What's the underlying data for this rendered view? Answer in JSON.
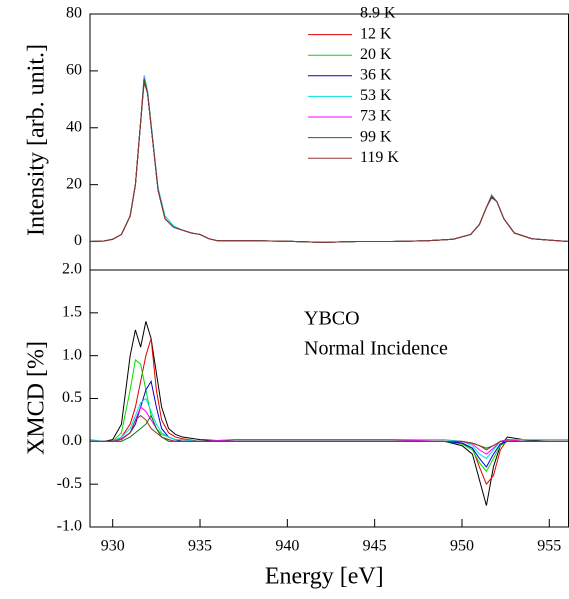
{
  "chart_data": [
    {
      "type": "line",
      "ylabel": "Intensity [arb. unit.]",
      "xlim": [
        928.7,
        956.1
      ],
      "ylim": [
        -10,
        80
      ],
      "yticks": [
        0,
        20,
        40,
        60,
        80
      ],
      "legend": "upper-center",
      "x": [
        928.7,
        929.5,
        930,
        930.5,
        931,
        931.3,
        931.6,
        931.8,
        932,
        932.3,
        932.6,
        933,
        933.5,
        934,
        934.5,
        935,
        935.5,
        936,
        938,
        940,
        942,
        944,
        946,
        948,
        949.5,
        950.5,
        951,
        951.4,
        951.7,
        952,
        952.4,
        953,
        954,
        955,
        956.1
      ],
      "series": [
        {
          "name": "8.9 K",
          "color": "#000000",
          "values": [
            0,
            0.2,
            0.8,
            2.5,
            9,
            20,
            42,
            56.5,
            52,
            35,
            18,
            8,
            5,
            4,
            3,
            2.5,
            1,
            0.3,
            0.3,
            0.1,
            -0.3,
            0,
            0,
            0.3,
            0.8,
            2.5,
            6,
            12,
            15.5,
            14,
            8,
            3,
            1,
            0.5,
            0
          ]
        },
        {
          "name": "12 K",
          "color": "#e00000",
          "values": [
            0,
            0.2,
            0.8,
            2.5,
            9,
            20,
            42,
            57,
            52,
            35,
            18,
            8,
            5,
            4,
            3,
            2.5,
            1,
            0.3,
            0.3,
            0.1,
            -0.3,
            0,
            0,
            0.3,
            0.8,
            2.5,
            6,
            12,
            16,
            14,
            8,
            3,
            1,
            0.5,
            0
          ]
        },
        {
          "name": "20 K",
          "color": "#00dd00",
          "values": [
            0,
            0.2,
            0.8,
            2.5,
            9,
            20,
            42,
            57.5,
            52,
            35,
            18,
            8,
            5,
            4,
            3,
            2.5,
            1,
            0.3,
            0.3,
            0.1,
            -0.3,
            0,
            0,
            0.3,
            0.8,
            2.5,
            6,
            12,
            16,
            14,
            8,
            3,
            1,
            0.5,
            0
          ]
        },
        {
          "name": "36 K",
          "color": "#0000cc",
          "values": [
            0,
            0.2,
            0.8,
            2.5,
            9,
            20,
            42,
            58,
            52,
            35,
            18,
            8,
            5,
            4,
            3,
            2.5,
            1,
            0.3,
            0.3,
            0.1,
            -0.3,
            0,
            0,
            0.3,
            0.8,
            2.5,
            6,
            12,
            16,
            14,
            8,
            3,
            1,
            0.5,
            0
          ]
        },
        {
          "name": "53 K",
          "color": "#00e0e0",
          "values": [
            0,
            0.2,
            0.8,
            2.5,
            9,
            20,
            42,
            58.5,
            53,
            36,
            19,
            9,
            5.5,
            4,
            3,
            2.5,
            1,
            0.3,
            0.3,
            0.1,
            -0.3,
            0,
            0,
            0.3,
            0.8,
            2.5,
            6,
            12,
            16.5,
            14,
            8,
            3,
            1,
            0.5,
            0
          ]
        },
        {
          "name": "73 K",
          "color": "#ff00ff",
          "values": [
            0,
            0.2,
            0.8,
            2.5,
            9,
            20,
            42,
            57.5,
            52,
            35,
            18,
            8,
            5,
            4,
            3,
            2.5,
            1,
            0.3,
            0.3,
            0.1,
            -0.3,
            0,
            0,
            0.3,
            0.8,
            2.5,
            6,
            12,
            16,
            14,
            8,
            3,
            1,
            0.5,
            0
          ]
        },
        {
          "name": "99 K",
          "color": "#008000",
          "values": [
            0,
            0.2,
            0.8,
            2.5,
            9,
            20,
            42,
            57,
            52,
            35,
            18,
            8,
            5,
            4,
            3,
            2.5,
            1,
            0.3,
            0.3,
            0.1,
            -0.3,
            0,
            0,
            0.3,
            0.8,
            2.5,
            6,
            12,
            16,
            14,
            8,
            3,
            1,
            0.5,
            0
          ]
        },
        {
          "name": "119 K",
          "color": "#993333",
          "values": [
            0,
            0.2,
            0.8,
            2.5,
            9,
            20,
            42,
            56,
            52,
            35,
            18,
            8,
            5,
            4,
            3,
            2.5,
            1,
            0.3,
            0.3,
            0.1,
            -0.3,
            0,
            0,
            0.3,
            0.8,
            2.5,
            6,
            12,
            16,
            14,
            8,
            3,
            1,
            0.5,
            0
          ]
        }
      ]
    },
    {
      "type": "line",
      "ylabel": "XMCD [%]",
      "xlabel": "Energy [eV]",
      "annotations": [
        "YBCO",
        "Normal Incidence"
      ],
      "xlim": [
        928.7,
        956.1
      ],
      "xticks": [
        930,
        935,
        940,
        945,
        950,
        955
      ],
      "ylim": [
        -1,
        2
      ],
      "yticks": [
        {
          "value": -1,
          "label": "-1.0"
        },
        -0.5,
        {
          "value": 0,
          "label": "0.0"
        },
        0.5,
        {
          "value": 1,
          "label": "1.0"
        },
        1.5,
        {
          "value": 2,
          "label": "2.0"
        }
      ],
      "x": [
        928.7,
        929.5,
        930,
        930.5,
        931,
        931.3,
        931.6,
        931.9,
        932.2,
        932.5,
        932.8,
        933.2,
        933.6,
        934,
        935,
        937,
        940,
        943,
        946,
        949,
        950,
        950.6,
        951,
        951.4,
        951.8,
        952.2,
        952.6,
        953.5,
        955,
        956.1
      ],
      "series": [
        {
          "color": "#000000",
          "values": [
            0,
            0,
            0.02,
            0.2,
            1,
            1.3,
            1.1,
            1.4,
            1.2,
            0.8,
            0.4,
            0.15,
            0.08,
            0.05,
            0.02,
            0,
            0,
            0,
            0,
            0,
            -0.05,
            -0.15,
            -0.45,
            -0.75,
            -0.3,
            -0.05,
            0.05,
            0.02,
            0,
            0
          ]
        },
        {
          "color": "#e00000",
          "values": [
            0,
            0,
            0,
            0.05,
            0.2,
            0.4,
            0.7,
            1,
            1.2,
            0.6,
            0.25,
            0.1,
            0.05,
            0.03,
            0,
            0,
            0,
            0,
            0,
            0,
            -0.02,
            -0.08,
            -0.3,
            -0.5,
            -0.4,
            -0.1,
            0.02,
            0,
            0,
            0
          ]
        },
        {
          "color": "#00dd00",
          "values": [
            0,
            0,
            0,
            0.1,
            0.6,
            0.95,
            0.9,
            0.6,
            0.3,
            0.15,
            0.08,
            0.05,
            0.02,
            0,
            0,
            0,
            0,
            0,
            0,
            0,
            -0.03,
            -0.1,
            -0.25,
            -0.35,
            -0.2,
            -0.05,
            0,
            0,
            0,
            0
          ]
        },
        {
          "color": "#0000cc",
          "values": [
            0,
            0,
            0,
            0.03,
            0.1,
            0.2,
            0.4,
            0.6,
            0.7,
            0.4,
            0.15,
            0.05,
            0.02,
            0,
            0,
            0,
            0,
            0,
            0,
            0,
            -0.02,
            -0.08,
            -0.2,
            -0.3,
            -0.15,
            -0.03,
            0,
            0,
            0,
            0
          ]
        },
        {
          "color": "#00e0e0",
          "values": [
            0.02,
            0,
            0,
            0.05,
            0.15,
            0.3,
            0.45,
            0.5,
            0.35,
            0.2,
            0.1,
            0.05,
            0.02,
            0.02,
            0,
            0.02,
            0.02,
            0.02,
            0.02,
            0.02,
            0,
            -0.05,
            -0.15,
            -0.2,
            -0.1,
            0,
            0.02,
            0.02,
            0.02,
            0.02
          ]
        },
        {
          "color": "#ff00ff",
          "values": [
            0,
            0,
            0,
            0.03,
            0.1,
            0.25,
            0.4,
            0.35,
            0.25,
            0.15,
            0.05,
            0.02,
            0,
            0,
            0,
            0.02,
            0.02,
            0.02,
            0.02,
            0,
            0,
            -0.03,
            -0.1,
            -0.15,
            -0.08,
            0,
            0.02,
            0,
            0,
            0
          ]
        },
        {
          "color": "#008000",
          "values": [
            0,
            0,
            0,
            0,
            0.05,
            0.1,
            0.15,
            0.2,
            0.3,
            0.15,
            0.05,
            0,
            0,
            0,
            0,
            0,
            0,
            0,
            0,
            0,
            0,
            -0.02,
            -0.05,
            -0.08,
            -0.05,
            0,
            0,
            0,
            0,
            0
          ]
        },
        {
          "color": "#993333",
          "values": [
            0,
            0,
            0,
            0.02,
            0.1,
            0.25,
            0.3,
            0.25,
            0.15,
            0.1,
            0.05,
            0.02,
            0,
            0,
            0,
            0,
            0,
            0,
            0,
            0,
            0,
            -0.02,
            -0.05,
            -0.1,
            -0.05,
            0,
            0,
            0,
            0,
            0
          ]
        }
      ]
    }
  ]
}
